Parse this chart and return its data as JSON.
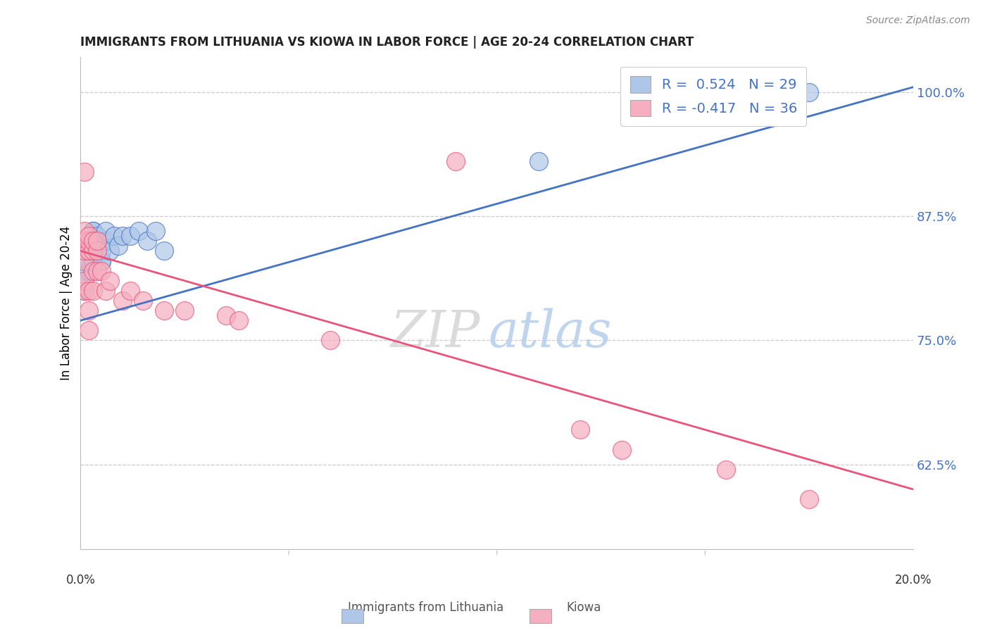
{
  "title": "IMMIGRANTS FROM LITHUANIA VS KIOWA IN LABOR FORCE | AGE 20-24 CORRELATION CHART",
  "source": "Source: ZipAtlas.com",
  "ylabel": "In Labor Force | Age 20-24",
  "ytick_labels": [
    "62.5%",
    "75.0%",
    "87.5%",
    "100.0%"
  ],
  "ytick_values": [
    0.625,
    0.75,
    0.875,
    1.0
  ],
  "xlim": [
    0.0,
    0.2
  ],
  "ylim": [
    0.54,
    1.035
  ],
  "legend_r1": "R =  0.524   N = 29",
  "legend_r2": "R = -0.417   N = 36",
  "legend_label1": "Immigrants from Lithuania",
  "legend_label2": "Kiowa",
  "blue_color": "#aec6e8",
  "pink_color": "#f5afc0",
  "blue_line_color": "#4472c4",
  "pink_line_color": "#e8547a",
  "blue_scatter": [
    [
      0.001,
      0.8
    ],
    [
      0.001,
      0.82
    ],
    [
      0.002,
      0.82
    ],
    [
      0.002,
      0.83
    ],
    [
      0.002,
      0.84
    ],
    [
      0.003,
      0.83
    ],
    [
      0.003,
      0.84
    ],
    [
      0.003,
      0.85
    ],
    [
      0.003,
      0.86
    ],
    [
      0.003,
      0.86
    ],
    [
      0.004,
      0.84
    ],
    [
      0.004,
      0.85
    ],
    [
      0.004,
      0.855
    ],
    [
      0.005,
      0.83
    ],
    [
      0.005,
      0.84
    ],
    [
      0.005,
      0.83
    ],
    [
      0.006,
      0.85
    ],
    [
      0.006,
      0.86
    ],
    [
      0.007,
      0.84
    ],
    [
      0.008,
      0.855
    ],
    [
      0.009,
      0.845
    ],
    [
      0.01,
      0.855
    ],
    [
      0.012,
      0.855
    ],
    [
      0.014,
      0.86
    ],
    [
      0.016,
      0.85
    ],
    [
      0.018,
      0.86
    ],
    [
      0.02,
      0.84
    ],
    [
      0.11,
      0.93
    ],
    [
      0.175,
      1.0
    ]
  ],
  "pink_scatter": [
    [
      0.001,
      0.8
    ],
    [
      0.001,
      0.81
    ],
    [
      0.001,
      0.83
    ],
    [
      0.001,
      0.84
    ],
    [
      0.001,
      0.85
    ],
    [
      0.001,
      0.86
    ],
    [
      0.001,
      0.92
    ],
    [
      0.002,
      0.76
    ],
    [
      0.002,
      0.78
    ],
    [
      0.002,
      0.8
    ],
    [
      0.002,
      0.84
    ],
    [
      0.002,
      0.85
    ],
    [
      0.002,
      0.855
    ],
    [
      0.003,
      0.8
    ],
    [
      0.003,
      0.82
    ],
    [
      0.003,
      0.84
    ],
    [
      0.003,
      0.85
    ],
    [
      0.004,
      0.82
    ],
    [
      0.004,
      0.84
    ],
    [
      0.004,
      0.85
    ],
    [
      0.005,
      0.82
    ],
    [
      0.006,
      0.8
    ],
    [
      0.007,
      0.81
    ],
    [
      0.01,
      0.79
    ],
    [
      0.012,
      0.8
    ],
    [
      0.015,
      0.79
    ],
    [
      0.02,
      0.78
    ],
    [
      0.025,
      0.78
    ],
    [
      0.035,
      0.775
    ],
    [
      0.038,
      0.77
    ],
    [
      0.06,
      0.75
    ],
    [
      0.09,
      0.93
    ],
    [
      0.12,
      0.66
    ],
    [
      0.13,
      0.64
    ],
    [
      0.155,
      0.62
    ],
    [
      0.175,
      0.59
    ]
  ],
  "blue_line": [
    [
      0.0,
      0.77
    ],
    [
      0.2,
      1.005
    ]
  ],
  "pink_line": [
    [
      0.0,
      0.84
    ],
    [
      0.2,
      0.6
    ]
  ]
}
